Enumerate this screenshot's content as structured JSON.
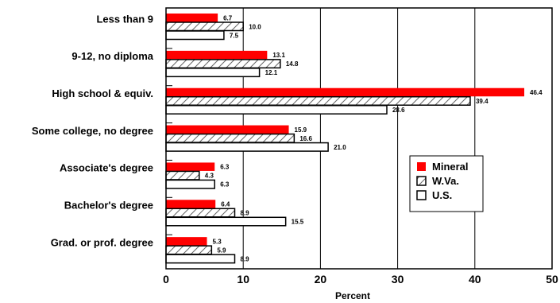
{
  "chart_data": {
    "type": "bar",
    "orientation": "horizontal",
    "categories": [
      "Less than 9",
      "9-12, no diploma",
      "High school & equiv.",
      "Some college, no degree",
      "Associate's degree",
      "Bachelor's degree",
      "Grad. or prof. degree"
    ],
    "series": [
      {
        "name": "Mineral",
        "values": [
          6.7,
          13.1,
          46.4,
          15.9,
          6.3,
          6.4,
          5.3
        ],
        "labels": [
          "6.7",
          "13.1",
          "46.4",
          "15.9",
          "6.3",
          "6.4",
          "5.3"
        ],
        "color": "#ff0000",
        "pattern": "solid"
      },
      {
        "name": "W.Va.",
        "values": [
          10.0,
          14.8,
          39.4,
          16.6,
          4.3,
          8.9,
          5.9
        ],
        "labels": [
          "10.0",
          "14.8",
          "39.4",
          "16.6",
          "4.3",
          "8.9",
          "5.9"
        ],
        "color": "#ffffff",
        "pattern": "hatch"
      },
      {
        "name": "U.S.",
        "values": [
          7.5,
          12.1,
          28.6,
          21.0,
          6.3,
          15.5,
          8.9
        ],
        "labels": [
          "7.5",
          "12.1",
          "28.6",
          "21.0",
          "6.3",
          "15.5",
          "8.9"
        ],
        "color": "#ffffff",
        "pattern": "outline"
      }
    ],
    "xlabel": "Percent",
    "xlim": [
      0,
      50
    ],
    "xticks": [
      "0",
      "10",
      "20",
      "30",
      "40",
      "50"
    ],
    "grid": "vertical",
    "legend_placement": "right-center"
  }
}
